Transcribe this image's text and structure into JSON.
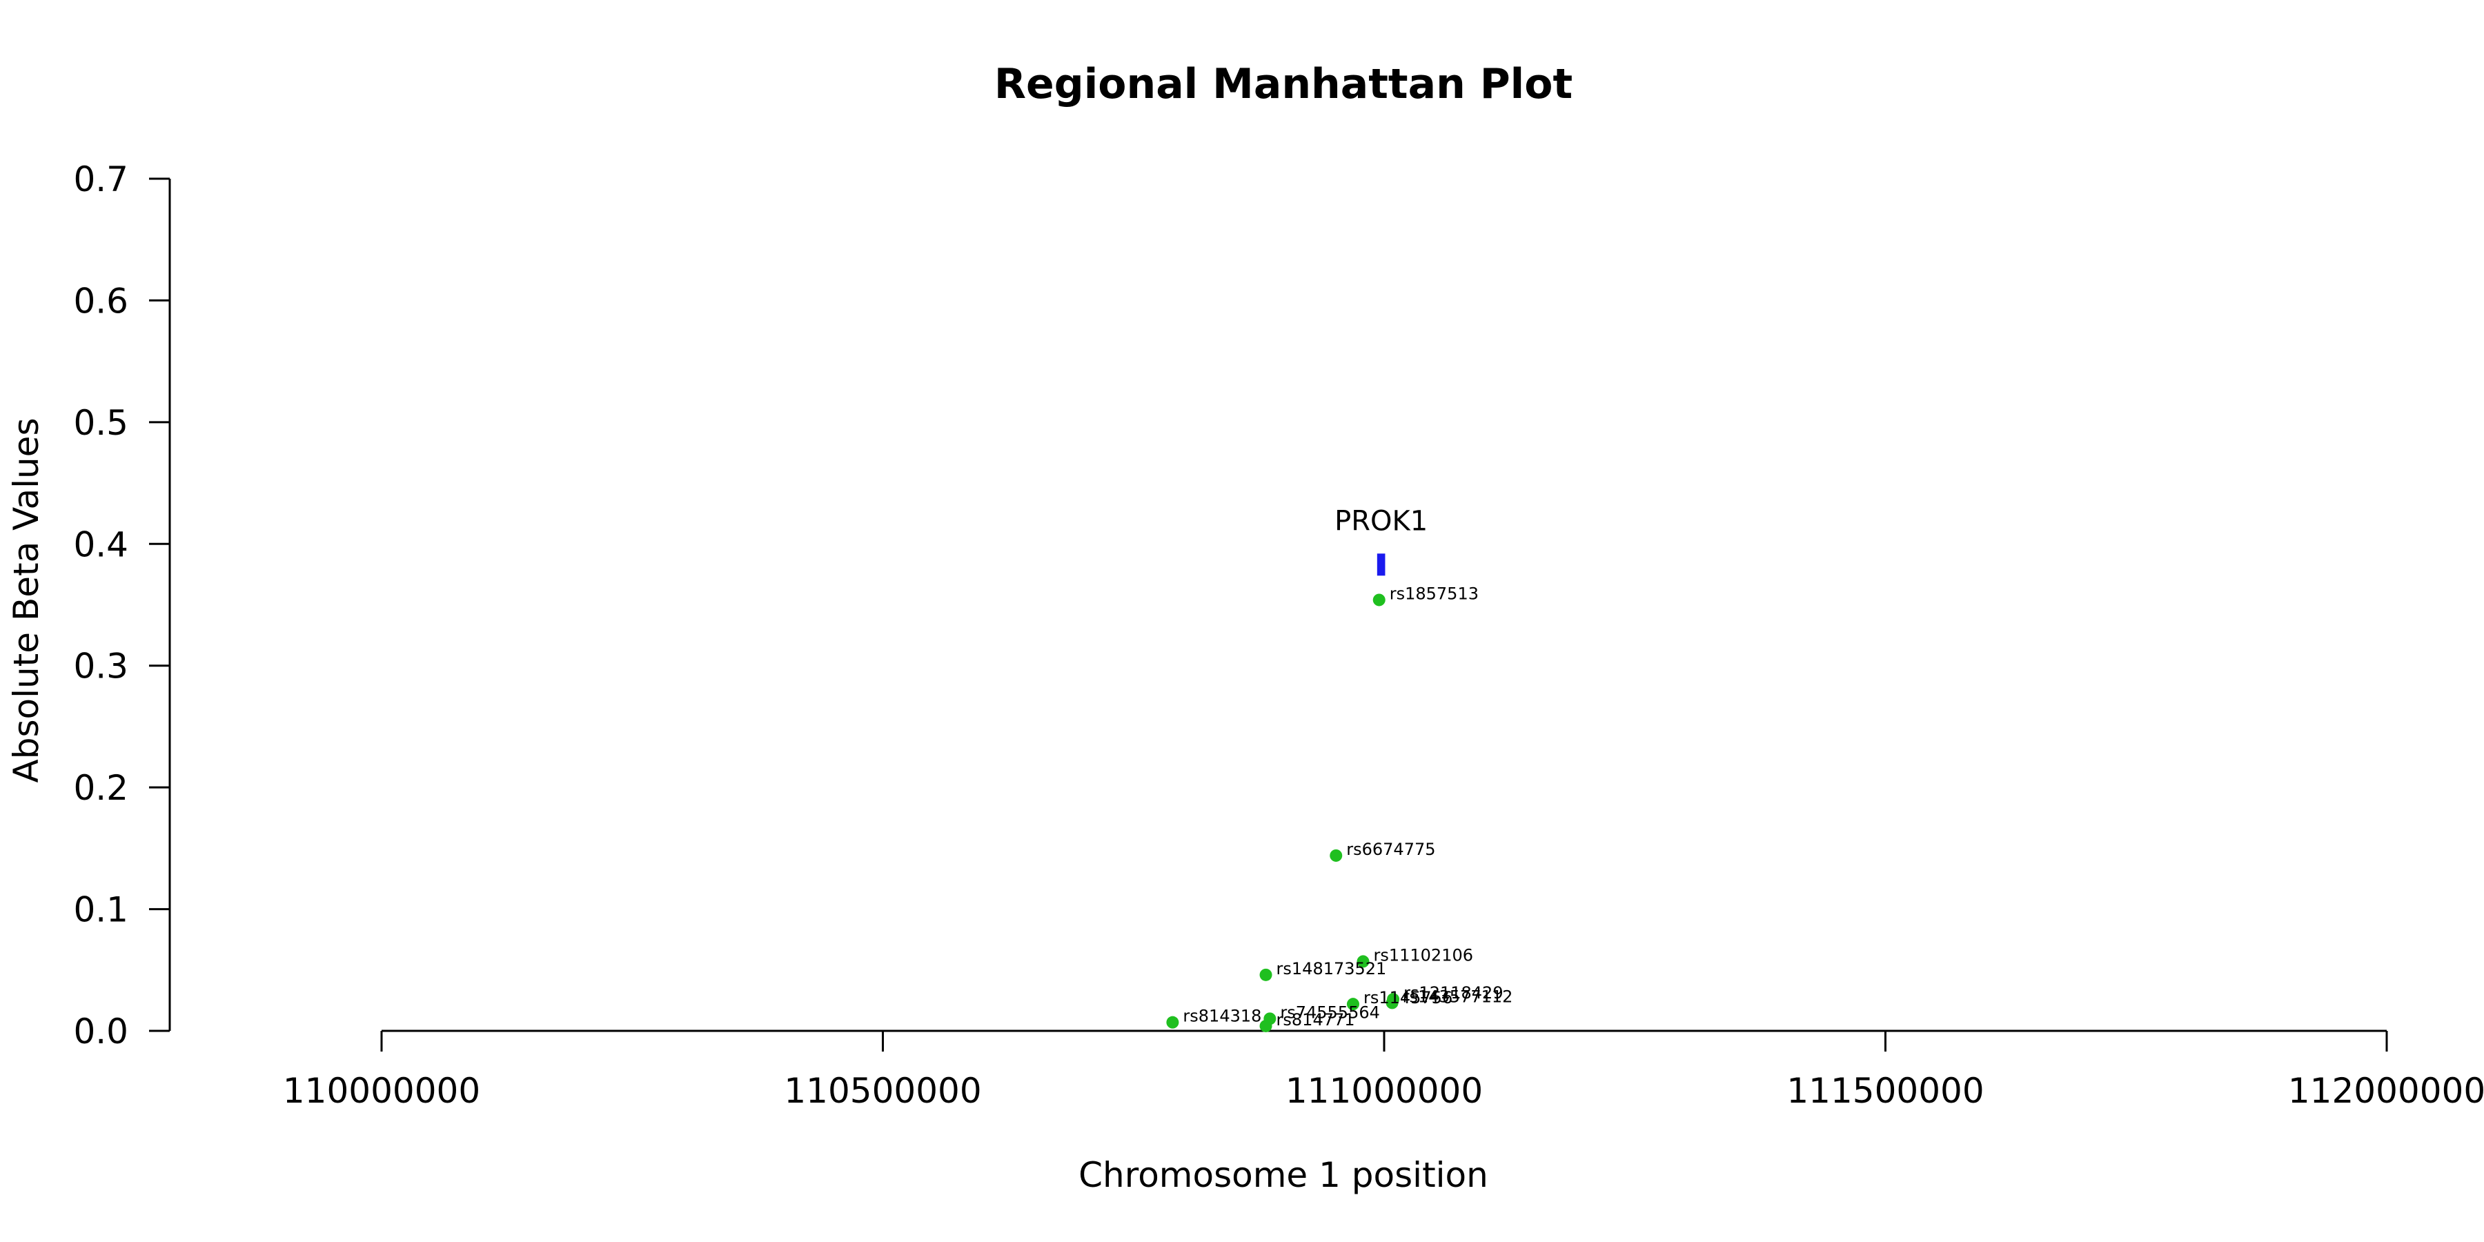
{
  "chart_data": {
    "type": "scatter",
    "title": "Regional Manhattan Plot",
    "xlabel": "Chromosome 1 position",
    "ylabel": "Absolute Beta Values",
    "xlim": [
      110000000,
      112000000
    ],
    "ylim": [
      0,
      0.7
    ],
    "x_ticks": [
      "110000000",
      "110500000",
      "111000000",
      "111500000",
      "112000000"
    ],
    "y_ticks": [
      "0.0",
      "0.1",
      "0.2",
      "0.3",
      "0.4",
      "0.5",
      "0.6",
      "0.7"
    ],
    "grid": false,
    "point_color": "#1fbf1f",
    "gene_color": "#1a1aee",
    "gene": {
      "name": "PROK1",
      "start": 110993000,
      "end": 111001000,
      "y": 0.383
    },
    "points": [
      {
        "label": "rs1857513",
        "x": 110995000,
        "y": 0.354
      },
      {
        "label": "rs6674775",
        "x": 110952000,
        "y": 0.144
      },
      {
        "label": "rs11102106",
        "x": 110979000,
        "y": 0.057
      },
      {
        "label": "rs148173521",
        "x": 110882000,
        "y": 0.046
      },
      {
        "label": "rs12118429",
        "x": 111009000,
        "y": 0.026
      },
      {
        "label": "rs143577112",
        "x": 111008000,
        "y": 0.023
      },
      {
        "label": "rs1145756",
        "x": 110969000,
        "y": 0.022
      },
      {
        "label": "rs74555564",
        "x": 110886000,
        "y": 0.01
      },
      {
        "label": "rs814318",
        "x": 110789000,
        "y": 0.007
      },
      {
        "label": "rs814771",
        "x": 110882000,
        "y": 0.004
      }
    ]
  }
}
